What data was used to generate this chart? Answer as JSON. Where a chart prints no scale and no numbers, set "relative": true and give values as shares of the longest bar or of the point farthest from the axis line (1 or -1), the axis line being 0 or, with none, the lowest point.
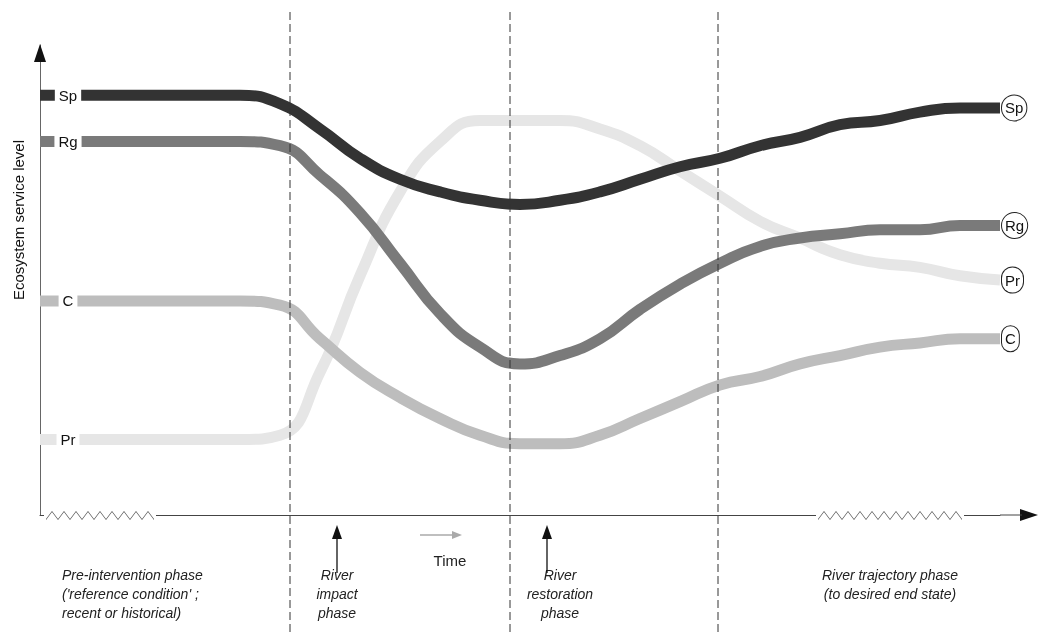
{
  "chart_data": {
    "type": "line",
    "relative": true,
    "ylabel": "Ecosystem service level",
    "xlabel": "Time",
    "categories": [
      null,
      null,
      null,
      null,
      null,
      null,
      null,
      null,
      null,
      null,
      null,
      null,
      null,
      null,
      null,
      null,
      null,
      null,
      null,
      null,
      null,
      null,
      null,
      null,
      null
    ],
    "series": [
      {
        "name": "Sp",
        "color": "#333333",
        "values": [
          1.0,
          1.0,
          1.0,
          1.0,
          1.0,
          1.0,
          0.98,
          0.92,
          0.85,
          0.8,
          0.77,
          0.75,
          0.74,
          0.75,
          0.77,
          0.8,
          0.83,
          0.85,
          0.88,
          0.9,
          0.93,
          0.94,
          0.96,
          0.97,
          0.97
        ]
      },
      {
        "name": "Rg",
        "color": "#7a7a7a",
        "values": [
          0.89,
          0.89,
          0.89,
          0.89,
          0.89,
          0.89,
          0.88,
          0.81,
          0.72,
          0.6,
          0.48,
          0.4,
          0.36,
          0.38,
          0.42,
          0.49,
          0.55,
          0.6,
          0.64,
          0.66,
          0.67,
          0.68,
          0.68,
          0.69,
          0.69
        ]
      },
      {
        "name": "C",
        "color": "#bdbdbd",
        "values": [
          0.51,
          0.51,
          0.51,
          0.51,
          0.51,
          0.51,
          0.5,
          0.42,
          0.34,
          0.28,
          0.23,
          0.19,
          0.17,
          0.17,
          0.19,
          0.23,
          0.27,
          0.31,
          0.33,
          0.36,
          0.38,
          0.4,
          0.41,
          0.42,
          0.42
        ]
      },
      {
        "name": "Pr",
        "color": "#e6e6e6",
        "values": [
          0.18,
          0.18,
          0.18,
          0.18,
          0.18,
          0.18,
          0.19,
          0.34,
          0.57,
          0.77,
          0.89,
          0.94,
          0.94,
          0.94,
          0.92,
          0.88,
          0.82,
          0.76,
          0.7,
          0.66,
          0.62,
          0.6,
          0.59,
          0.57,
          0.56
        ]
      }
    ],
    "annotations": [
      "Pre-intervention phase\n('reference condition' ;\nrecent or historical)",
      "River\nimpact\nphase",
      "River\nrestoration\nphase",
      "River trajectory phase\n(to desired end state)"
    ],
    "grid": false,
    "legend": false,
    "marker": "none",
    "line_style": "solid"
  }
}
